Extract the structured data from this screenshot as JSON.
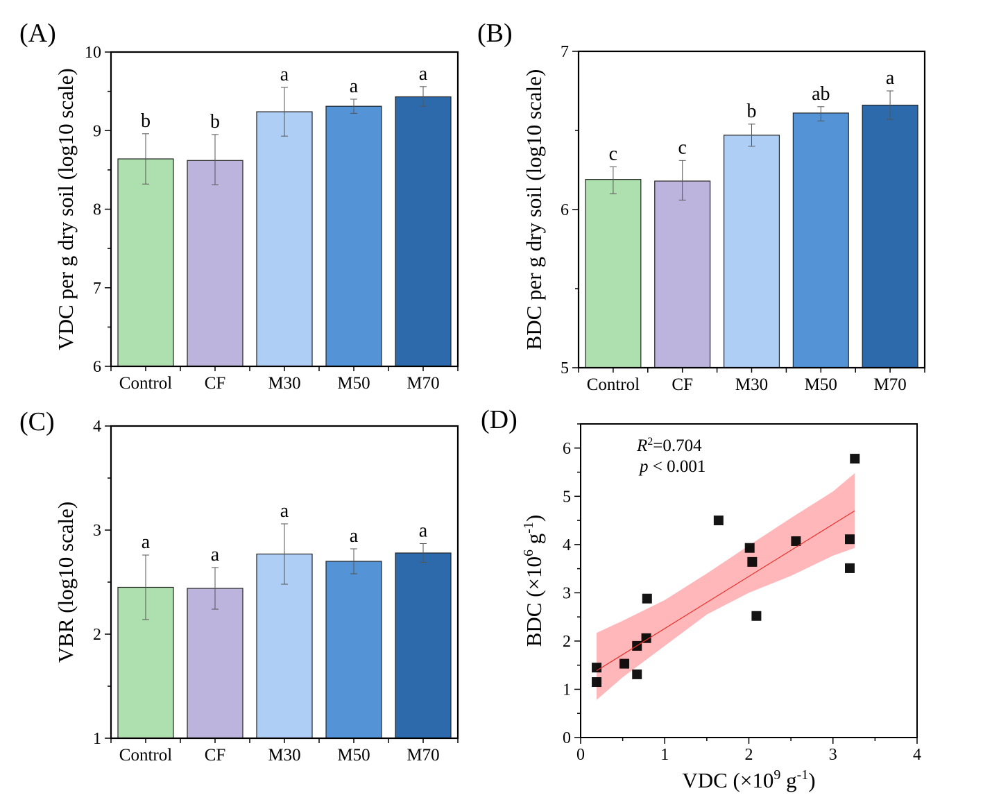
{
  "colors": {
    "Control": "#AEDFAE",
    "CF": "#BCB4DC",
    "M30": "#AECEF5",
    "M50": "#5393D6",
    "M70": "#2C6AAB",
    "fit_line": "#E8302C",
    "fit_band": "#FFB3B5",
    "point": "#000000"
  },
  "chart_data": [
    {
      "id": "A",
      "panel_label": "(A)",
      "type": "bar",
      "categories": [
        "Control",
        "CF",
        "M30",
        "M50",
        "M70"
      ],
      "values": [
        8.64,
        8.62,
        9.24,
        9.31,
        9.43
      ],
      "error_low": [
        8.32,
        8.31,
        8.93,
        9.22,
        9.31
      ],
      "error_high": [
        8.96,
        8.95,
        9.55,
        9.4,
        9.56
      ],
      "significance": [
        "b",
        "b",
        "a",
        "a",
        "a"
      ],
      "xlabel": "",
      "ylabel": "VDC per g dry soil (log10 scale)",
      "ylim": [
        6,
        10
      ],
      "yticks": [
        6,
        7,
        8,
        9,
        10
      ],
      "grid": false
    },
    {
      "id": "B",
      "panel_label": "(B)",
      "type": "bar",
      "categories": [
        "Control",
        "CF",
        "M30",
        "M50",
        "M70"
      ],
      "values": [
        6.19,
        6.18,
        6.47,
        6.61,
        6.66
      ],
      "error_low": [
        6.1,
        6.06,
        6.4,
        6.56,
        6.57
      ],
      "error_high": [
        6.27,
        6.31,
        6.54,
        6.65,
        6.75
      ],
      "significance": [
        "c",
        "c",
        "b",
        "ab",
        "a"
      ],
      "xlabel": "",
      "ylabel": "BDC per g dry soil (log10 scale)",
      "ylim": [
        5,
        7
      ],
      "yticks": [
        5,
        6,
        7
      ],
      "grid": false
    },
    {
      "id": "C",
      "panel_label": "(C)",
      "type": "bar",
      "categories": [
        "Control",
        "CF",
        "M30",
        "M50",
        "M70"
      ],
      "values": [
        2.45,
        2.44,
        2.77,
        2.7,
        2.78
      ],
      "error_low": [
        2.14,
        2.24,
        2.48,
        2.58,
        2.69
      ],
      "error_high": [
        2.76,
        2.64,
        3.06,
        2.82,
        2.87
      ],
      "significance": [
        "a",
        "a",
        "a",
        "a",
        "a"
      ],
      "xlabel": "",
      "ylabel": "VBR (log10 scale)",
      "ylim": [
        1,
        4
      ],
      "yticks": [
        1,
        2,
        3,
        4
      ],
      "grid": false
    },
    {
      "id": "D",
      "panel_label": "(D)",
      "type": "scatter",
      "x": [
        0.19,
        0.19,
        0.52,
        0.67,
        0.67,
        0.78,
        0.79,
        1.64,
        2.01,
        2.04,
        2.09,
        2.56,
        3.2,
        3.2,
        3.26
      ],
      "y": [
        1.45,
        1.15,
        1.53,
        1.31,
        1.9,
        2.06,
        2.88,
        4.5,
        3.93,
        3.64,
        2.52,
        4.07,
        4.11,
        3.51,
        5.78
      ],
      "fit": {
        "type": "linear",
        "x_range": [
          0.19,
          3.26
        ],
        "intercept": 1.18,
        "slope": 1.08,
        "confidence_band": {
          "x": [
            0.19,
            0.5,
            1.0,
            1.5,
            2.0,
            2.5,
            3.0,
            3.26
          ],
          "upper": [
            2.17,
            2.42,
            2.85,
            3.4,
            3.98,
            4.55,
            5.1,
            5.48
          ],
          "lower": [
            0.78,
            1.25,
            1.9,
            2.55,
            3.0,
            3.35,
            3.77,
            3.93
          ]
        }
      },
      "annotations": {
        "r2_label": "R",
        "r2_sup": "2",
        "r2_value": "=0.704",
        "p_label": "p",
        "p_value": " < 0.001"
      },
      "xlabel": {
        "pre": "VDC (×10",
        "sup1": "9",
        "mid": " g",
        "sup2": "-1",
        "post": ")"
      },
      "ylabel": {
        "pre": "BDC (×10",
        "sup1": "6",
        "mid": " g",
        "sup2": "-1",
        "post": ")"
      },
      "xlim": [
        0,
        4
      ],
      "ylim": [
        0,
        6.5
      ],
      "xticks": [
        0,
        1,
        2,
        3,
        4
      ],
      "yticks": [
        0,
        1,
        2,
        3,
        4,
        5,
        6
      ],
      "grid": false
    }
  ]
}
